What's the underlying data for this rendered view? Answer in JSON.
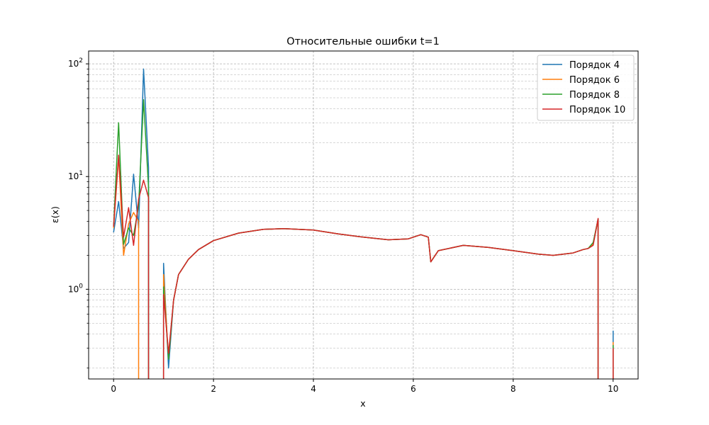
{
  "chart_data": {
    "type": "line",
    "title": "Относительные ошибки t=1",
    "xlabel": "x",
    "ylabel": "ε(x)",
    "yscale": "log",
    "xlim": [
      -0.5,
      10.5
    ],
    "ylim": [
      0.16,
      130
    ],
    "xticks": [
      0,
      2,
      4,
      6,
      8,
      10
    ],
    "xtick_labels": [
      "0",
      "2",
      "4",
      "6",
      "8",
      "10"
    ],
    "yticks_major": [
      1,
      10,
      100
    ],
    "ytick_labels": [
      {
        "base": "10",
        "exp": "0"
      },
      {
        "base": "10",
        "exp": "1"
      },
      {
        "base": "10",
        "exp": "2"
      }
    ],
    "grid": "on (major and minor, dashed)",
    "legend_position": "top-right",
    "series": [
      {
        "name": "Порядок 4",
        "color": "#1f77b4",
        "points": [
          [
            0.0,
            3.2
          ],
          [
            0.1,
            6.0
          ],
          [
            0.2,
            2.3
          ],
          [
            0.3,
            2.6
          ],
          [
            0.4,
            10.5
          ],
          [
            0.5,
            3.5
          ],
          [
            0.6,
            90.0
          ],
          [
            0.7,
            12.0
          ],
          [
            0.7,
            0.12
          ],
          null,
          [
            1.0,
            0.12
          ],
          [
            1.0,
            1.7
          ],
          [
            1.1,
            0.2
          ],
          [
            1.2,
            0.8
          ],
          [
            1.3,
            1.35
          ],
          [
            1.5,
            1.85
          ],
          [
            1.7,
            2.25
          ],
          [
            2.0,
            2.7
          ],
          [
            2.5,
            3.15
          ],
          [
            3.0,
            3.4
          ],
          [
            3.4,
            3.45
          ],
          [
            4.0,
            3.35
          ],
          [
            4.5,
            3.1
          ],
          [
            5.0,
            2.9
          ],
          [
            5.5,
            2.75
          ],
          [
            5.9,
            2.8
          ],
          [
            6.15,
            3.05
          ],
          [
            6.3,
            2.9
          ],
          [
            6.35,
            1.75
          ],
          [
            6.5,
            2.2
          ],
          [
            7.0,
            2.45
          ],
          [
            7.5,
            2.35
          ],
          [
            8.0,
            2.2
          ],
          [
            8.5,
            2.05
          ],
          [
            8.8,
            2.0
          ],
          [
            9.2,
            2.1
          ],
          [
            9.4,
            2.25
          ],
          [
            9.5,
            2.3
          ],
          [
            9.6,
            2.5
          ],
          [
            9.7,
            4.2
          ],
          [
            9.7,
            0.12
          ],
          null,
          [
            10.0,
            0.12
          ],
          [
            10.0,
            0.43
          ]
        ]
      },
      {
        "name": "Порядок 6",
        "color": "#ff7f0e",
        "points": [
          [
            0.0,
            3.5
          ],
          [
            0.1,
            15.0
          ],
          [
            0.2,
            2.0
          ],
          [
            0.3,
            3.8
          ],
          [
            0.4,
            4.8
          ],
          [
            0.5,
            4.0
          ],
          [
            0.5,
            0.12
          ],
          null,
          [
            1.0,
            0.12
          ],
          [
            1.0,
            1.35
          ],
          [
            1.1,
            0.24
          ],
          [
            1.2,
            0.8
          ],
          [
            1.3,
            1.35
          ],
          [
            1.5,
            1.85
          ],
          [
            1.7,
            2.25
          ],
          [
            2.0,
            2.7
          ],
          [
            2.5,
            3.15
          ],
          [
            3.0,
            3.4
          ],
          [
            3.4,
            3.45
          ],
          [
            4.0,
            3.35
          ],
          [
            4.5,
            3.1
          ],
          [
            5.0,
            2.9
          ],
          [
            5.5,
            2.75
          ],
          [
            5.9,
            2.8
          ],
          [
            6.15,
            3.05
          ],
          [
            6.3,
            2.9
          ],
          [
            6.35,
            1.75
          ],
          [
            6.5,
            2.2
          ],
          [
            7.0,
            2.45
          ],
          [
            7.5,
            2.35
          ],
          [
            8.0,
            2.2
          ],
          [
            8.5,
            2.05
          ],
          [
            8.8,
            2.0
          ],
          [
            9.2,
            2.1
          ],
          [
            9.4,
            2.25
          ],
          [
            9.5,
            2.3
          ],
          [
            9.6,
            2.5
          ],
          [
            9.7,
            4.2
          ],
          [
            9.7,
            0.12
          ],
          null,
          [
            10.0,
            0.12
          ],
          [
            10.0,
            0.34
          ]
        ]
      },
      {
        "name": "Порядок 8",
        "color": "#2ca02c",
        "points": [
          [
            0.0,
            3.6
          ],
          [
            0.1,
            30.0
          ],
          [
            0.2,
            2.5
          ],
          [
            0.3,
            3.5
          ],
          [
            0.4,
            3.0
          ],
          [
            0.5,
            5.5
          ],
          [
            0.6,
            48.0
          ],
          [
            0.7,
            8.0
          ],
          [
            0.7,
            0.12
          ],
          null,
          [
            1.0,
            0.12
          ],
          [
            1.0,
            1.05
          ],
          [
            1.1,
            0.24
          ],
          [
            1.2,
            0.8
          ],
          [
            1.3,
            1.35
          ],
          [
            1.5,
            1.85
          ],
          [
            1.7,
            2.25
          ],
          [
            2.0,
            2.7
          ],
          [
            2.5,
            3.15
          ],
          [
            3.0,
            3.4
          ],
          [
            3.4,
            3.45
          ],
          [
            4.0,
            3.35
          ],
          [
            4.5,
            3.1
          ],
          [
            5.0,
            2.9
          ],
          [
            5.5,
            2.75
          ],
          [
            5.9,
            2.8
          ],
          [
            6.15,
            3.05
          ],
          [
            6.3,
            2.9
          ],
          [
            6.35,
            1.75
          ],
          [
            6.5,
            2.2
          ],
          [
            7.0,
            2.45
          ],
          [
            7.5,
            2.35
          ],
          [
            8.0,
            2.2
          ],
          [
            8.5,
            2.05
          ],
          [
            8.8,
            2.0
          ],
          [
            9.2,
            2.1
          ],
          [
            9.4,
            2.25
          ],
          [
            9.5,
            2.3
          ],
          [
            9.6,
            2.6
          ],
          [
            9.7,
            4.2
          ],
          [
            9.7,
            0.12
          ],
          null,
          [
            10.0,
            0.12
          ],
          [
            10.0,
            0.32
          ]
        ]
      },
      {
        "name": "Порядок 10",
        "color": "#d62728",
        "points": [
          [
            0.0,
            3.6
          ],
          [
            0.1,
            15.5
          ],
          [
            0.2,
            2.9
          ],
          [
            0.3,
            5.3
          ],
          [
            0.4,
            2.45
          ],
          [
            0.5,
            6.3
          ],
          [
            0.6,
            9.3
          ],
          [
            0.7,
            6.5
          ],
          [
            0.7,
            0.12
          ],
          null,
          [
            1.0,
            0.12
          ],
          [
            1.0,
            0.9
          ],
          [
            1.1,
            0.27
          ],
          [
            1.2,
            0.8
          ],
          [
            1.3,
            1.35
          ],
          [
            1.5,
            1.85
          ],
          [
            1.7,
            2.25
          ],
          [
            2.0,
            2.7
          ],
          [
            2.5,
            3.15
          ],
          [
            3.0,
            3.4
          ],
          [
            3.4,
            3.45
          ],
          [
            4.0,
            3.35
          ],
          [
            4.5,
            3.1
          ],
          [
            5.0,
            2.9
          ],
          [
            5.5,
            2.75
          ],
          [
            5.9,
            2.8
          ],
          [
            6.15,
            3.05
          ],
          [
            6.3,
            2.9
          ],
          [
            6.35,
            1.75
          ],
          [
            6.5,
            2.2
          ],
          [
            7.0,
            2.45
          ],
          [
            7.5,
            2.35
          ],
          [
            8.0,
            2.2
          ],
          [
            8.5,
            2.05
          ],
          [
            8.8,
            2.0
          ],
          [
            9.2,
            2.1
          ],
          [
            9.4,
            2.25
          ],
          [
            9.5,
            2.3
          ],
          [
            9.6,
            2.45
          ],
          [
            9.7,
            4.25
          ],
          [
            9.7,
            0.12
          ],
          null,
          [
            10.0,
            0.12
          ],
          [
            10.0,
            0.3
          ]
        ]
      }
    ]
  }
}
